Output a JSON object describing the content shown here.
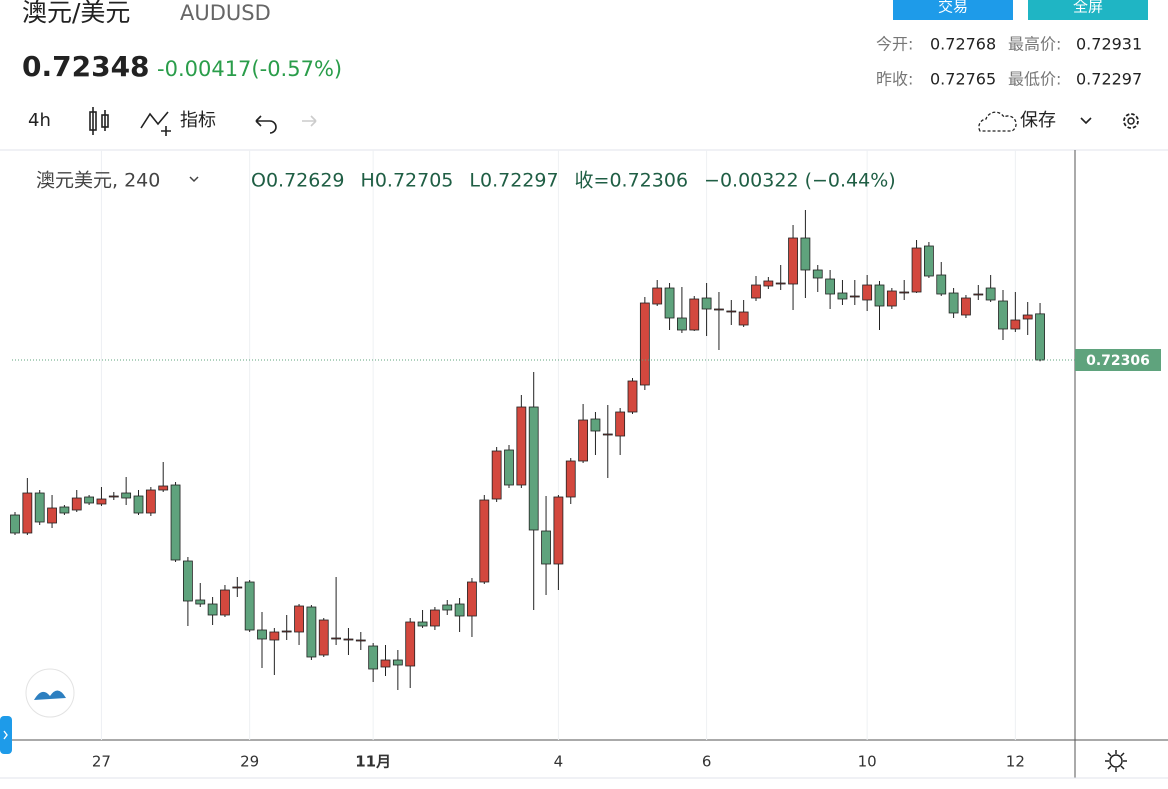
{
  "header": {
    "title": "澳元/美元",
    "symbol": "AUDUSD",
    "price": "0.72348",
    "change": "-0.00417(-0.57%)",
    "buttons": [
      "交易",
      "全屏"
    ],
    "stats": [
      [
        "今开:",
        "0.72768",
        "最高价:",
        "0.72931"
      ],
      [
        "昨收:",
        "0.72765",
        "最低价:",
        "0.72297"
      ]
    ]
  },
  "toolbar": {
    "interval": "4h",
    "indicators": "指标",
    "save": "保存"
  },
  "chart_data": {
    "type": "candlestick",
    "legend_title": "澳元美元, 240",
    "legend_values": [
      "O0.72629",
      "H0.72705",
      "L0.72297",
      "收=0.72306",
      "−0.00322 (−0.44%)"
    ],
    "categories": [
      null,
      null,
      null,
      null,
      null,
      null,
      null,
      "27",
      null,
      null,
      null,
      null,
      null,
      null,
      null,
      null,
      null,
      null,
      null,
      "29",
      null,
      null,
      null,
      null,
      null,
      null,
      null,
      null,
      null,
      "11月",
      null,
      null,
      null,
      null,
      null,
      null,
      null,
      null,
      null,
      null,
      null,
      null,
      null,
      null,
      "4",
      null,
      null,
      null,
      null,
      null,
      null,
      null,
      null,
      null,
      null,
      null,
      "6",
      null,
      null,
      null,
      null,
      null,
      null,
      null,
      null,
      null,
      null,
      null,
      null,
      "10",
      null,
      null,
      null,
      null,
      null,
      null,
      null,
      null,
      null,
      null,
      null,
      "12",
      null,
      null
    ],
    "open": [
      0.71221,
      0.71095,
      0.71375,
      0.71165,
      0.71277,
      0.71256,
      0.71347,
      0.71298,
      0.71354,
      0.71375,
      0.71354,
      0.71235,
      0.71396,
      0.71431,
      0.70899,
      0.70626,
      0.70598,
      0.70521,
      0.70717,
      0.70752,
      0.70416,
      0.70346,
      0.70409,
      0.70402,
      0.70577,
      0.70241,
      0.7036,
      0.70353,
      0.70346,
      0.70304,
      0.70157,
      0.70206,
      0.70164,
      0.70472,
      0.70444,
      0.70591,
      0.70598,
      0.70514,
      0.70752,
      0.71333,
      0.71676,
      0.71431,
      0.71977,
      0.71109,
      0.70878,
      0.71347,
      0.71599,
      0.71893,
      0.71788,
      0.71774,
      0.71942,
      0.72131,
      0.72698,
      0.7281,
      0.726,
      0.72516,
      0.7274,
      0.72663,
      0.72649,
      0.72551,
      0.7274,
      0.72824,
      0.72845,
      0.72838,
      0.7316,
      0.72936,
      0.72873,
      0.72775,
      0.72754,
      0.72726,
      0.72831,
      0.72684,
      0.72782,
      0.72782,
      0.73104,
      0.72901,
      0.72775,
      0.72621,
      0.72768,
      0.7281,
      0.72719,
      0.72523,
      0.72593,
      0.72629
    ],
    "high": [
      0.71242,
      0.7148,
      0.71396,
      0.71361,
      0.71291,
      0.71396,
      0.71361,
      0.71417,
      0.71382,
      0.71487,
      0.71396,
      0.71417,
      0.71592,
      0.71452,
      0.70927,
      0.70745,
      0.70647,
      0.70731,
      0.70787,
      0.70766,
      0.70542,
      0.7043,
      0.70521,
      0.70598,
      0.70591,
      0.705,
      0.70787,
      0.7043,
      0.70402,
      0.70325,
      0.70311,
      0.70276,
      0.705,
      0.70556,
      0.70577,
      0.70626,
      0.7064,
      0.7078,
      0.71361,
      0.71697,
      0.71711,
      0.72061,
      0.72222,
      0.71354,
      0.71361,
      0.7162,
      0.71998,
      0.71942,
      0.71991,
      0.7197,
      0.7218,
      0.72747,
      0.72866,
      0.72845,
      0.72817,
      0.72754,
      0.72845,
      0.72782,
      0.72726,
      0.72726,
      0.72894,
      0.72887,
      0.72971,
      0.73251,
      0.73356,
      0.72971,
      0.72936,
      0.72866,
      0.72866,
      0.72901,
      0.72859,
      0.7281,
      0.72866,
      0.73146,
      0.73132,
      0.72992,
      0.7281,
      0.72761,
      0.72831,
      0.72901,
      0.72796,
      0.72782,
      0.72712,
      0.72705
    ],
    "low": [
      0.71081,
      0.71081,
      0.71151,
      0.7113,
      0.71221,
      0.71242,
      0.71291,
      0.71284,
      0.71326,
      0.71291,
      0.71221,
      0.71214,
      0.71382,
      0.70892,
      0.70444,
      0.70577,
      0.70451,
      0.70507,
      0.70647,
      0.70402,
      0.7015,
      0.70101,
      0.70346,
      0.70311,
      0.70206,
      0.70227,
      0.70311,
      0.70241,
      0.70276,
      0.70052,
      0.70094,
      0.69996,
      0.7001,
      0.7043,
      0.70416,
      0.70521,
      0.70402,
      0.70367,
      0.70738,
      0.71312,
      0.7141,
      0.7141,
      0.70556,
      0.70661,
      0.70696,
      0.71298,
      0.71585,
      0.71641,
      0.7148,
      0.71641,
      0.71928,
      0.72096,
      0.72684,
      0.72516,
      0.72495,
      0.72509,
      0.72474,
      0.72376,
      0.72551,
      0.72537,
      0.72719,
      0.72803,
      0.72796,
      0.72656,
      0.7274,
      0.72782,
      0.72663,
      0.72691,
      0.72691,
      0.72649,
      0.72516,
      0.72663,
      0.72726,
      0.72775,
      0.7288,
      0.72754,
      0.726,
      0.726,
      0.72726,
      0.72712,
      0.72446,
      0.72502,
      0.72481,
      0.72297
    ],
    "close": [
      0.71095,
      0.71375,
      0.71172,
      0.7127,
      0.71235,
      0.7134,
      0.71305,
      0.71333,
      0.71354,
      0.7134,
      0.71235,
      0.71396,
      0.71424,
      0.70906,
      0.70619,
      0.70598,
      0.70521,
      0.70696,
      0.70717,
      0.70416,
      0.70353,
      0.70402,
      0.70409,
      0.70584,
      0.70227,
      0.70486,
      0.7036,
      0.70353,
      0.70346,
      0.70143,
      0.70206,
      0.70171,
      0.70472,
      0.70444,
      0.70556,
      0.70556,
      0.70514,
      0.70752,
      0.71326,
      0.71669,
      0.71431,
      0.71977,
      0.71116,
      0.70878,
      0.71347,
      0.71599,
      0.71886,
      0.71809,
      0.71788,
      0.71942,
      0.72159,
      0.72705,
      0.7281,
      0.726,
      0.72516,
      0.72733,
      0.72663,
      0.72663,
      0.72649,
      0.72642,
      0.72831,
      0.72859,
      0.72845,
      0.7316,
      0.72936,
      0.7288,
      0.72768,
      0.72733,
      0.72754,
      0.72831,
      0.72684,
      0.72789,
      0.72782,
      0.7309,
      0.72894,
      0.72768,
      0.72635,
      0.7274,
      0.72768,
      0.72726,
      0.72523,
      0.72586,
      0.72621,
      0.72306
    ],
    "up_color": "#d3483e",
    "down_color": "#5fa37d",
    "ylim": [
      0.69646,
      0.73776
    ],
    "last_price": 0.72306,
    "last_price_color": "#5fa37d",
    "grid": true
  }
}
